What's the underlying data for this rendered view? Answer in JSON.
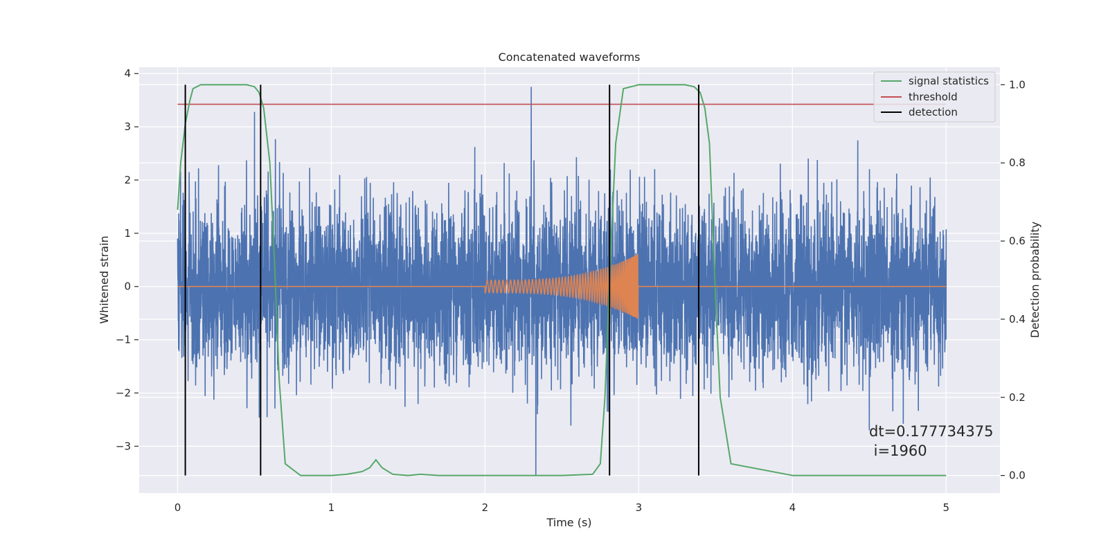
{
  "chart_data": {
    "type": "line",
    "title": "Concatenated waveforms",
    "xlabel": "Time (s)",
    "ylabel": "Whitened strain",
    "y2label": "Detection probability",
    "xlim": [
      -0.25,
      5.35
    ],
    "ylim": [
      -3.88,
      4.12
    ],
    "y2lim": [
      -0.045,
      1.045
    ],
    "x_ticks": [
      0,
      1,
      2,
      3,
      4,
      5
    ],
    "y_ticks": [
      -3,
      -2,
      -1,
      0,
      1,
      2,
      3,
      4
    ],
    "y2_ticks": [
      0.0,
      0.2,
      0.4,
      0.6,
      0.8,
      1.0
    ],
    "grid": true,
    "legend_position": "top-right",
    "colors": {
      "strain": "#4c72b0",
      "waveform": "#dd8452",
      "signal_statistics": "#55a868",
      "threshold": "#c44e52",
      "detection": "#000000",
      "background": "#eaeaf2"
    },
    "noise": {
      "x_range": [
        0,
        5
      ],
      "samples": 5000,
      "amplitude_scale": 0.8,
      "y_max": 3.75,
      "y_min": -3.55,
      "notable_peaks": [
        {
          "x": 2.3,
          "y": 3.75
        },
        {
          "x": 2.33,
          "y": -3.55
        },
        {
          "x": 0.5,
          "y": 3.28
        },
        {
          "x": 4.5,
          "y": -2.7
        }
      ]
    },
    "waveform": {
      "x_range": [
        0,
        5
      ],
      "chirp_start": 2.0,
      "merger_time": 3.0,
      "start_amplitude": 0.12,
      "peak_amplitude": 0.62
    },
    "series": [
      {
        "name": "signal statistics",
        "axis": "right",
        "x": [
          0,
          0.02,
          0.05,
          0.08,
          0.1,
          0.15,
          0.3,
          0.45,
          0.5,
          0.53,
          0.56,
          0.6,
          0.63,
          0.66,
          0.7,
          0.8,
          1.0,
          1.1,
          1.2,
          1.25,
          1.29,
          1.33,
          1.4,
          1.5,
          1.58,
          1.7,
          2.0,
          2.5,
          2.7,
          2.75,
          2.78,
          2.81,
          2.85,
          2.9,
          3.0,
          3.3,
          3.36,
          3.4,
          3.43,
          3.46,
          3.5,
          3.53,
          3.6,
          4.0,
          5.0
        ],
        "y": [
          0.68,
          0.8,
          0.9,
          0.96,
          0.99,
          1.0,
          1.0,
          1.0,
          0.995,
          0.98,
          0.94,
          0.8,
          0.55,
          0.25,
          0.03,
          0.0,
          0.0,
          0.003,
          0.01,
          0.02,
          0.04,
          0.02,
          0.003,
          0.0,
          0.003,
          0.0,
          0.0,
          0.0,
          0.003,
          0.03,
          0.2,
          0.5,
          0.85,
          0.99,
          1.0,
          1.0,
          0.995,
          0.98,
          0.94,
          0.85,
          0.45,
          0.2,
          0.03,
          0.0,
          0.0
        ]
      },
      {
        "name": "threshold",
        "axis": "right",
        "x": [
          0,
          5
        ],
        "y": [
          0.95,
          0.95
        ]
      },
      {
        "name": "detection",
        "axis": "right",
        "x": [
          0.05,
          0.54,
          2.81,
          3.39
        ],
        "y_range": [
          0.0,
          1.0
        ]
      }
    ],
    "annotation": {
      "line1": "dt=0.177734375",
      "line2": " i=1960",
      "x": 4.5,
      "y": -2.7
    }
  }
}
